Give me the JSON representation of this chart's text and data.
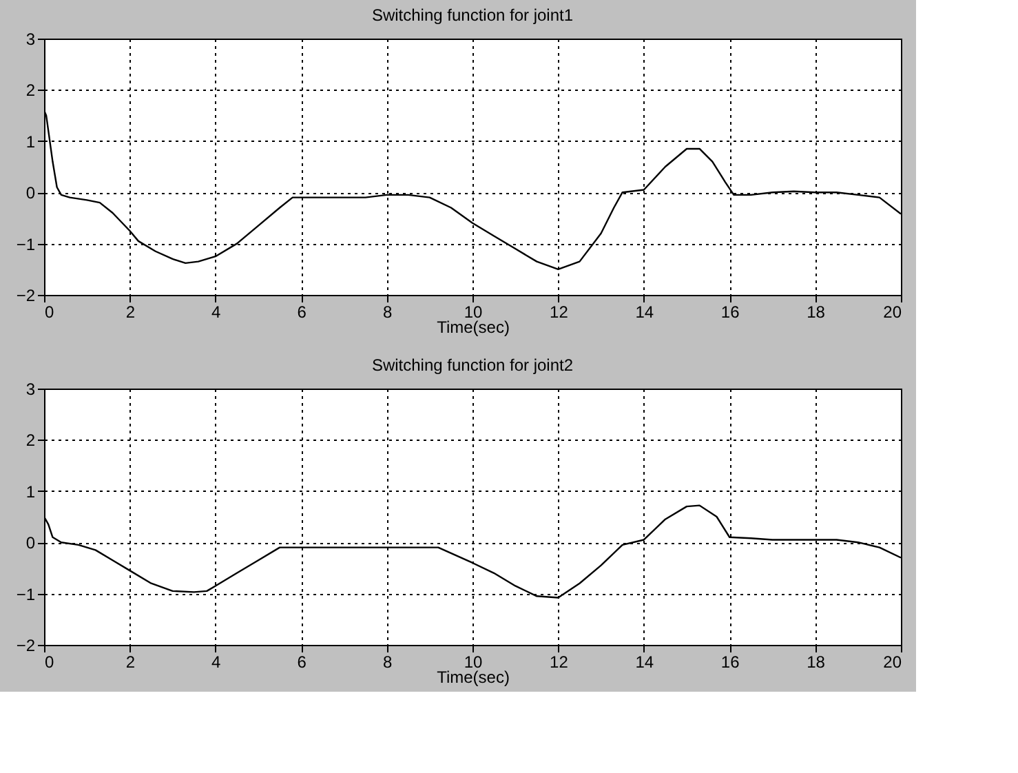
{
  "chart_data": [
    {
      "type": "line",
      "title": "Switching function for joint1",
      "xlabel": "Time(sec)",
      "xlim": [
        0,
        20
      ],
      "xticks": [
        0,
        2,
        4,
        6,
        8,
        10,
        12,
        14,
        16,
        18,
        20
      ],
      "ylim": [
        -2,
        3
      ],
      "yticks": [
        -2,
        -1,
        0,
        1,
        2,
        3
      ],
      "grid": true,
      "line_style": "solid",
      "series": [
        {
          "color": "#000000",
          "x": [
            0,
            0.05,
            0.1,
            0.2,
            0.3,
            0.4,
            0.6,
            1.0,
            1.3,
            1.6,
            2.0,
            2.2,
            2.6,
            3.0,
            3.3,
            3.6,
            4.0,
            4.5,
            5.0,
            5.5,
            5.8,
            6.5,
            7.5,
            8,
            8.5,
            9.0,
            9.5,
            10,
            10.5,
            11,
            11.5,
            12,
            12.5,
            13,
            13.3,
            13.5,
            14,
            14.5,
            15,
            15.3,
            15.6,
            15.9,
            16.1,
            16.5,
            17,
            17.5,
            18,
            18.5,
            19,
            19.5,
            20
          ],
          "values": [
            1.6,
            1.5,
            1.2,
            0.6,
            0.1,
            -0.05,
            -0.1,
            -0.15,
            -0.2,
            -0.4,
            -0.75,
            -0.95,
            -1.15,
            -1.3,
            -1.38,
            -1.35,
            -1.25,
            -1.0,
            -0.65,
            -0.3,
            -0.1,
            -0.1,
            -0.1,
            -0.05,
            -0.05,
            -0.1,
            -0.3,
            -0.6,
            -0.85,
            -1.1,
            -1.35,
            -1.5,
            -1.35,
            -0.8,
            -0.3,
            0,
            0.05,
            0.5,
            0.85,
            0.85,
            0.6,
            0.2,
            -0.05,
            -0.05,
            0,
            0.02,
            0,
            0,
            -0.05,
            -0.1,
            -0.42
          ]
        }
      ]
    },
    {
      "type": "line",
      "title": "Switching function for joint2",
      "xlabel": "Time(sec)",
      "xlim": [
        0,
        20
      ],
      "xticks": [
        0,
        2,
        4,
        6,
        8,
        10,
        12,
        14,
        16,
        18,
        20
      ],
      "ylim": [
        -2,
        3
      ],
      "yticks": [
        -2,
        -1,
        0,
        1,
        2,
        3
      ],
      "grid": true,
      "line_style": "solid",
      "series": [
        {
          "color": "#000000",
          "x": [
            0,
            0.1,
            0.2,
            0.4,
            0.8,
            1.2,
            1.6,
            2.0,
            2.5,
            3.0,
            3.5,
            3.8,
            4.0,
            4.5,
            5.0,
            5.5,
            5.8,
            7,
            9.2,
            10,
            10.5,
            11,
            11.5,
            12,
            12.5,
            13,
            13.5,
            14,
            14.5,
            15,
            15.3,
            15.7,
            16,
            16.5,
            17,
            17.5,
            18,
            18.5,
            19,
            19.5,
            20
          ],
          "values": [
            0.5,
            0.35,
            0.1,
            0.0,
            -0.05,
            -0.15,
            -0.35,
            -0.55,
            -0.8,
            -0.95,
            -0.97,
            -0.95,
            -0.85,
            -0.6,
            -0.35,
            -0.1,
            -0.1,
            -0.1,
            -0.1,
            -0.4,
            -0.6,
            -0.85,
            -1.05,
            -1.08,
            -0.8,
            -0.45,
            -0.05,
            0.05,
            0.45,
            0.7,
            0.72,
            0.5,
            0.1,
            0.08,
            0.05,
            0.05,
            0.05,
            0.05,
            0,
            -0.1,
            -0.3
          ]
        }
      ]
    }
  ]
}
